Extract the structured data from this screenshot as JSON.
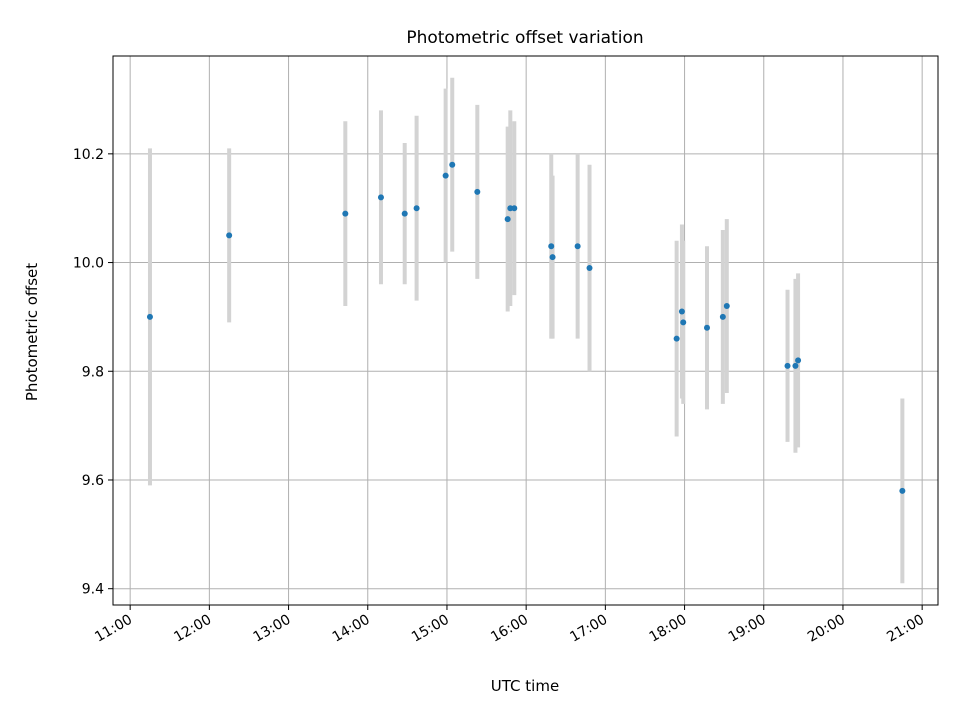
{
  "chart_data": {
    "type": "scatter",
    "title": "Photometric offset variation",
    "xlabel": "UTC time",
    "ylabel": "Photometric offset",
    "xlim": [
      "10:47",
      "21:12"
    ],
    "ylim": [
      9.37,
      10.38
    ],
    "x_ticks": [
      "11:00",
      "12:00",
      "13:00",
      "14:00",
      "15:00",
      "16:00",
      "17:00",
      "18:00",
      "19:00",
      "20:00",
      "21:00"
    ],
    "y_ticks": [
      9.4,
      9.6,
      9.8,
      10.0,
      10.2
    ],
    "grid": true,
    "colors": {
      "point": "#1f77b4",
      "errorbar": "#d3d3d3",
      "grid": "#b0b0b0"
    },
    "points": [
      {
        "x": "11:15",
        "y": 9.9,
        "err": 0.31
      },
      {
        "x": "12:15",
        "y": 10.05,
        "err": 0.16
      },
      {
        "x": "13:43",
        "y": 10.09,
        "err": 0.17
      },
      {
        "x": "14:10",
        "y": 10.12,
        "err": 0.16
      },
      {
        "x": "14:28",
        "y": 10.09,
        "err": 0.13
      },
      {
        "x": "14:37",
        "y": 10.1,
        "err": 0.17
      },
      {
        "x": "14:59",
        "y": 10.16,
        "err": 0.16
      },
      {
        "x": "15:04",
        "y": 10.18,
        "err": 0.16
      },
      {
        "x": "15:23",
        "y": 10.13,
        "err": 0.16
      },
      {
        "x": "15:46",
        "y": 10.08,
        "err": 0.17
      },
      {
        "x": "15:48",
        "y": 10.1,
        "err": 0.18
      },
      {
        "x": "15:51",
        "y": 10.1,
        "err": 0.16
      },
      {
        "x": "16:19",
        "y": 10.03,
        "err": 0.17
      },
      {
        "x": "16:20",
        "y": 10.01,
        "err": 0.15
      },
      {
        "x": "16:39",
        "y": 10.03,
        "err": 0.17
      },
      {
        "x": "16:48",
        "y": 9.99,
        "err": 0.19
      },
      {
        "x": "17:54",
        "y": 9.86,
        "err": 0.18
      },
      {
        "x": "17:58",
        "y": 9.91,
        "err": 0.16
      },
      {
        "x": "17:59",
        "y": 9.89,
        "err": 0.15
      },
      {
        "x": "18:17",
        "y": 9.88,
        "err": 0.15
      },
      {
        "x": "18:29",
        "y": 9.9,
        "err": 0.16
      },
      {
        "x": "18:32",
        "y": 9.92,
        "err": 0.16
      },
      {
        "x": "19:18",
        "y": 9.81,
        "err": 0.14
      },
      {
        "x": "19:24",
        "y": 9.81,
        "err": 0.16
      },
      {
        "x": "19:26",
        "y": 9.82,
        "err": 0.16
      },
      {
        "x": "20:45",
        "y": 9.58,
        "err": 0.17
      }
    ]
  }
}
